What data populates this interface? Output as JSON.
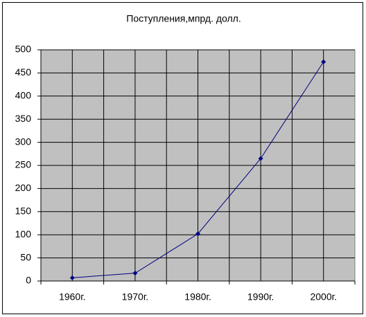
{
  "chart_data": {
    "type": "line",
    "title": "Поступления,мпрд. долл.",
    "categories": [
      "1960г.",
      "1970г.",
      "1980г.",
      "1990г.",
      "2000г."
    ],
    "series": [
      {
        "name": "Поступления",
        "color": "#000080",
        "values": [
          7,
          17,
          102,
          265,
          474
        ]
      }
    ],
    "ylim": [
      0,
      500
    ],
    "yticks": [
      0,
      50,
      100,
      150,
      200,
      250,
      300,
      350,
      400,
      450,
      500
    ],
    "grid": true,
    "plot_background": "#c0c0c0"
  }
}
